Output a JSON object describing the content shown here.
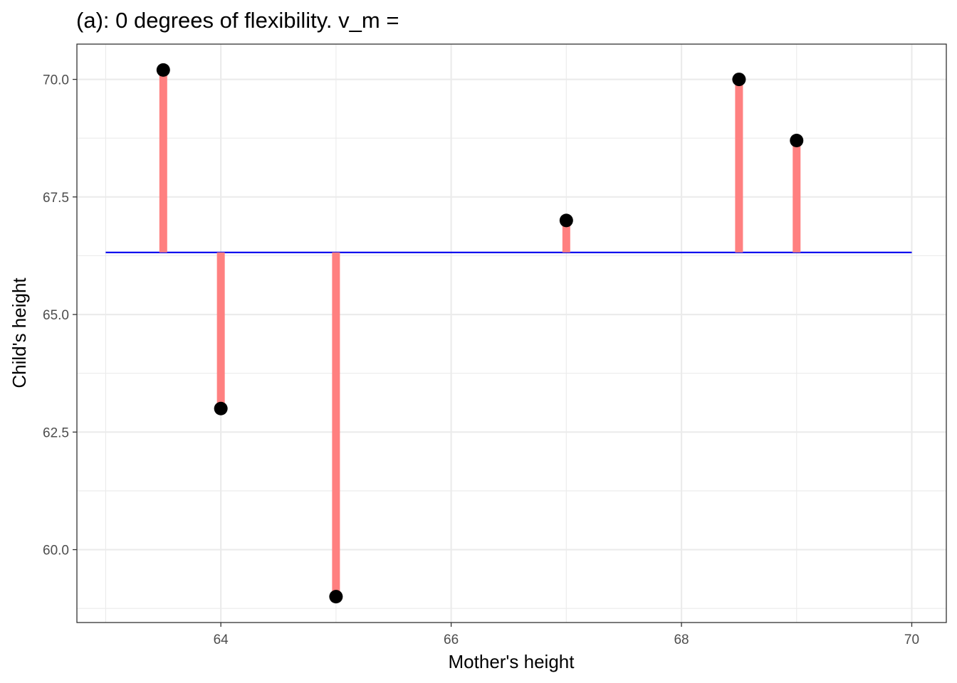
{
  "chart_data": {
    "type": "scatter",
    "title": "(a): 0 degrees of flexibility. v_m =",
    "xlabel": "Mother's height",
    "ylabel": "Child's height",
    "xlim": [
      62.75,
      70.3
    ],
    "ylim": [
      58.45,
      70.75
    ],
    "x_ticks": [
      64,
      66,
      68,
      70
    ],
    "x_tick_labels": [
      "64",
      "66",
      "68",
      "70"
    ],
    "y_ticks": [
      60.0,
      62.5,
      65.0,
      67.5,
      70.0
    ],
    "y_tick_labels": [
      "60.0",
      "62.5",
      "65.0",
      "67.5",
      "70.0"
    ],
    "grid": true,
    "points": [
      {
        "x": 63.5,
        "y": 70.2
      },
      {
        "x": 64.0,
        "y": 63.0
      },
      {
        "x": 65.0,
        "y": 59.0
      },
      {
        "x": 67.0,
        "y": 67.0
      },
      {
        "x": 68.5,
        "y": 70.0
      },
      {
        "x": 69.0,
        "y": 68.7
      }
    ],
    "model_line": {
      "x_start": 63.0,
      "x_end": 70.0,
      "y": 66.32
    },
    "colors": {
      "points": "#000000",
      "residuals": "#ff8080",
      "model_line": "#0000ee",
      "grid": "#ebebeb",
      "panel_border": "#333333"
    }
  }
}
